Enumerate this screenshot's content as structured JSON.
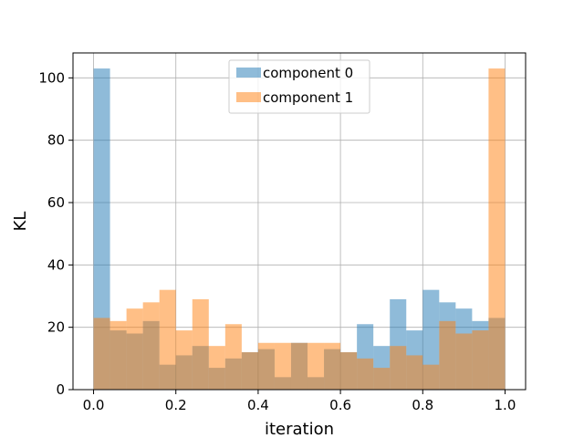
{
  "chart_data": {
    "type": "bar",
    "subtype": "overlapping-histogram",
    "title": "",
    "xlabel": "iteration",
    "ylabel": "KL",
    "xlim": [
      -0.05,
      1.05
    ],
    "ylim": [
      0,
      108
    ],
    "xticks": [
      0.0,
      0.2,
      0.4,
      0.6,
      0.8,
      1.0
    ],
    "xtick_labels": [
      "0.0",
      "0.2",
      "0.4",
      "0.6",
      "0.8",
      "1.0"
    ],
    "yticks": [
      0,
      20,
      40,
      60,
      80,
      100
    ],
    "ytick_labels": [
      "0",
      "20",
      "40",
      "60",
      "80",
      "100"
    ],
    "grid": true,
    "legend_position": "upper-center",
    "bin_edges": [
      0.0,
      0.04,
      0.08,
      0.12,
      0.16,
      0.2,
      0.24,
      0.28,
      0.32,
      0.36,
      0.4,
      0.44,
      0.48,
      0.52,
      0.56,
      0.6,
      0.64,
      0.68,
      0.72,
      0.76,
      0.8,
      0.84,
      0.88,
      0.92,
      0.96,
      1.0
    ],
    "series": [
      {
        "name": "component 0",
        "color": "#1f77b4",
        "values": [
          103,
          19,
          18,
          22,
          8,
          11,
          14,
          7,
          10,
          12,
          13,
          4,
          15,
          4,
          13,
          12,
          21,
          14,
          29,
          19,
          32,
          28,
          26,
          22,
          23
        ]
      },
      {
        "name": "component 1",
        "color": "#ff7f0e",
        "values": [
          23,
          22,
          26,
          28,
          32,
          19,
          29,
          14,
          21,
          12,
          15,
          15,
          15,
          15,
          15,
          12,
          10,
          7,
          14,
          11,
          8,
          22,
          18,
          19,
          103
        ]
      }
    ]
  }
}
